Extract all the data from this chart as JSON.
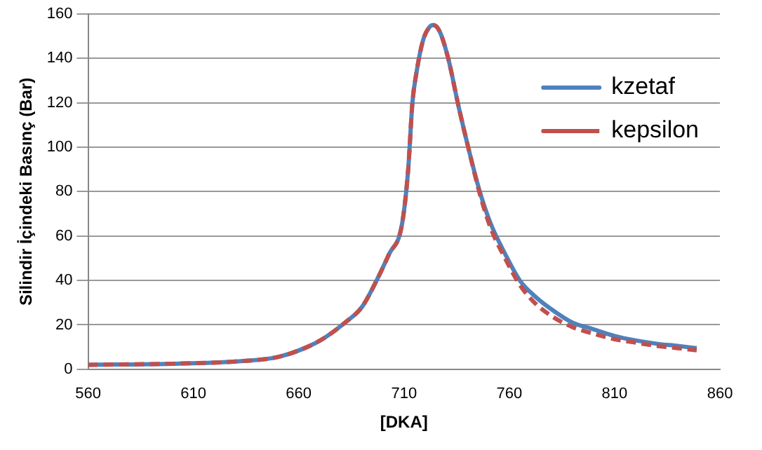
{
  "chart_data": {
    "type": "line",
    "xlabel": "[DKA]",
    "ylabel": "Silindir İçindeki Basınç (Bar)",
    "xlim": [
      560,
      860
    ],
    "xticks": [
      560,
      610,
      660,
      710,
      760,
      810,
      860
    ],
    "ylim": [
      0,
      160
    ],
    "yticks": [
      0,
      20,
      40,
      60,
      80,
      100,
      120,
      140,
      160
    ],
    "grid": "y",
    "legend": "top right",
    "marker": "none",
    "series": [
      {
        "name": "kzetaf",
        "color": "#4f81bd",
        "line_style": "solid",
        "x": [
          560,
          600,
          630,
          650,
          664,
          672,
          682,
          690,
          697,
          703,
          709,
          712,
          714,
          716,
          719,
          722,
          724,
          727,
          731,
          736,
          741,
          746,
          751,
          758,
          765,
          772,
          780,
          790,
          800,
          810,
          820,
          830,
          840,
          849
        ],
        "values": [
          2,
          2.5,
          3.5,
          5.5,
          10,
          14,
          21,
          28,
          40,
          52,
          65,
          90,
          120,
          134,
          148,
          154,
          155,
          152,
          140,
          118,
          98,
          80,
          66,
          52,
          40,
          33,
          27,
          21,
          18,
          15,
          13,
          11.5,
          10.5,
          9.5
        ]
      },
      {
        "name": "kepsilon",
        "color": "#c0504d",
        "line_style": "dashed",
        "x": [
          560,
          600,
          630,
          650,
          664,
          672,
          682,
          690,
          697,
          703,
          709,
          712,
          714,
          716,
          719,
          722,
          724,
          727,
          731,
          736,
          741,
          746,
          751,
          758,
          765,
          772,
          780,
          790,
          800,
          810,
          820,
          830,
          840,
          849
        ],
        "values": [
          2,
          2.5,
          3.5,
          5.5,
          10,
          14,
          21,
          28,
          40,
          52,
          65,
          90,
          120,
          134,
          148,
          154,
          155,
          152,
          140,
          118,
          98,
          79,
          64,
          50,
          38,
          30,
          24,
          19,
          16,
          13.5,
          12,
          10.5,
          9.5,
          8.5
        ]
      }
    ]
  }
}
